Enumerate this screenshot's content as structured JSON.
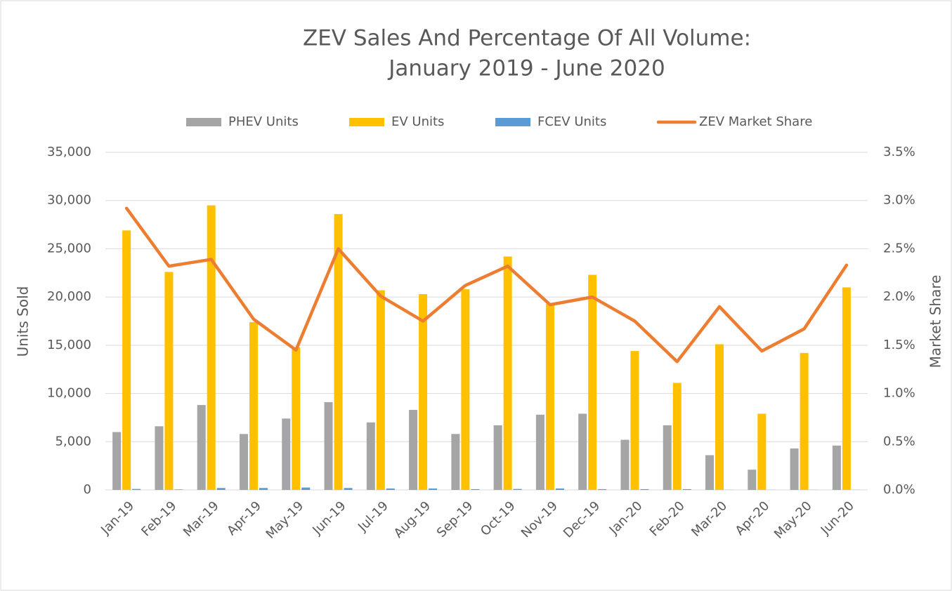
{
  "chart_data": {
    "type": "bar+line",
    "title": [
      "ZEV Sales And Percentage Of All Volume:",
      "January 2019 - June 2020"
    ],
    "y_label": "Units Sold",
    "y2_label": "Market Share",
    "categories": [
      "Jan-19",
      "Feb-19",
      "Mar-19",
      "Apr-19",
      "May-19",
      "Jun-19",
      "Jul-19",
      "Aug-19",
      "Sep-19",
      "Oct-19",
      "Nov-19",
      "Dec-19",
      "Jan-20",
      "Feb-20",
      "Mar-20",
      "Apr-20",
      "May-20",
      "Jun-20"
    ],
    "series": [
      {
        "name": "PHEV Units",
        "type": "bar",
        "color": "#a5a5a5",
        "values": [
          6000,
          6600,
          8800,
          5800,
          7400,
          9100,
          7000,
          8300,
          5800,
          6700,
          7800,
          7900,
          5200,
          6700,
          3600,
          2100,
          4300,
          4600
        ]
      },
      {
        "name": "EV Units",
        "type": "bar",
        "color": "#ffc000",
        "values": [
          26900,
          22600,
          29500,
          17400,
          14800,
          28600,
          20700,
          20300,
          20800,
          24200,
          19300,
          22300,
          14400,
          11100,
          15100,
          7900,
          14200,
          21000
        ]
      },
      {
        "name": "FCEV Units",
        "type": "bar",
        "color": "#5b9bd5",
        "values": [
          100,
          50,
          200,
          200,
          250,
          200,
          150,
          150,
          80,
          100,
          150,
          80,
          80,
          80,
          10,
          10,
          10,
          10
        ]
      },
      {
        "name": "ZEV Market Share",
        "type": "line",
        "axis": "y2",
        "color": "#ed7d31",
        "values": [
          2.92,
          2.32,
          2.39,
          1.77,
          1.45,
          2.5,
          2.01,
          1.75,
          2.12,
          2.32,
          1.92,
          2.0,
          1.75,
          1.33,
          1.9,
          1.44,
          1.67,
          2.33
        ]
      }
    ],
    "ylim": [
      0,
      35000
    ],
    "yticks": [
      0,
      {
        "value": 5000,
        "label": "5,000"
      },
      {
        "value": 10000,
        "label": "10,000"
      },
      {
        "value": 15000,
        "label": "15,000"
      },
      {
        "value": 20000,
        "label": "20,000"
      },
      {
        "value": 25000,
        "label": "25,000"
      },
      {
        "value": 30000,
        "label": "30,000"
      },
      {
        "value": 35000,
        "label": "35,000"
      }
    ],
    "y2lim": [
      0,
      3.5
    ],
    "y2ticks": [
      {
        "value": 0,
        "label": "0.0%"
      },
      {
        "value": 0.5,
        "label": "0.5%"
      },
      {
        "value": 1,
        "label": "1.0%"
      },
      {
        "value": 1.5,
        "label": "1.5%"
      },
      {
        "value": 2,
        "label": "2.0%"
      },
      {
        "value": 2.5,
        "label": "2.5%"
      },
      {
        "value": 3,
        "label": "3.0%"
      },
      {
        "value": 3.5,
        "label": "3.5%"
      }
    ],
    "grid": true,
    "legend": "top"
  }
}
